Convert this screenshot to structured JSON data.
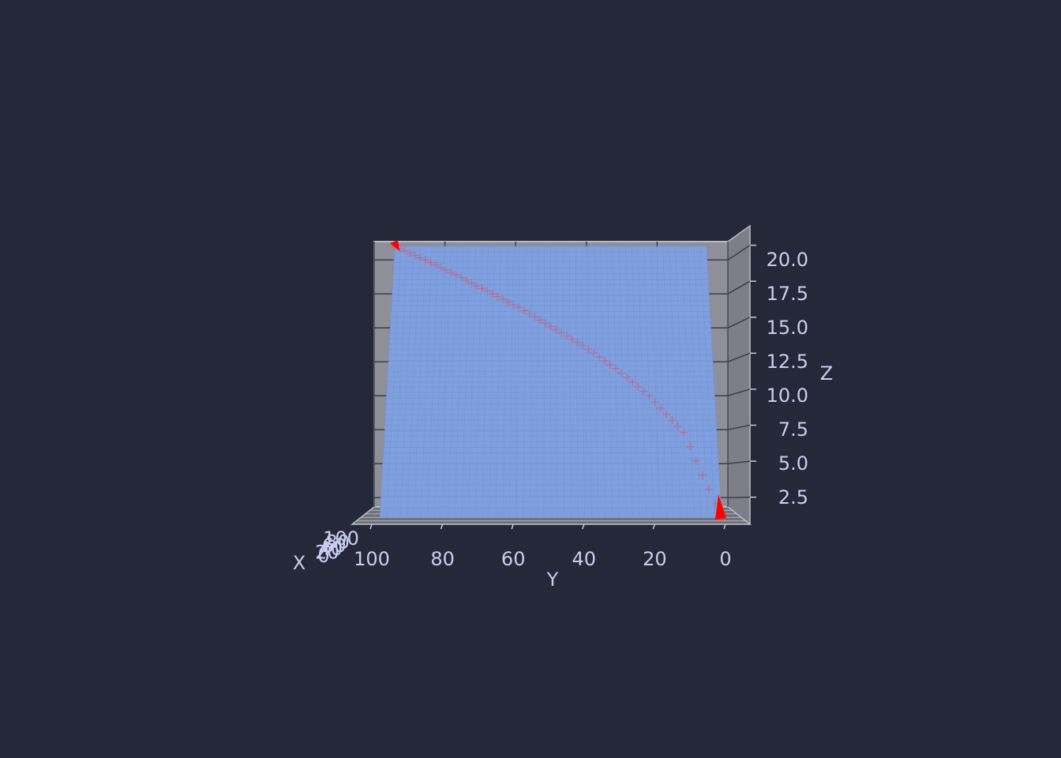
{
  "chart_data": {
    "type": "surface3d",
    "axes": {
      "x": {
        "label": "X",
        "ticks": [
          0,
          20,
          40,
          60,
          80,
          100
        ],
        "tick_labels": [
          "0",
          "20",
          "40",
          "60",
          "80",
          "100"
        ]
      },
      "y": {
        "label": "Y",
        "range": [
          0,
          100
        ],
        "ticks": [
          100,
          80,
          60,
          40,
          20,
          0
        ],
        "tick_labels": [
          "100",
          "80",
          "60",
          "40",
          "20",
          "0"
        ]
      },
      "z": {
        "label": "Z",
        "range": [
          1.0,
          21.0
        ],
        "ticks": [
          2.5,
          5.0,
          7.5,
          10.0,
          12.5,
          15.0,
          17.5,
          20.0
        ],
        "tick_labels": [
          "2.5",
          "5.0",
          "7.5",
          "10.0",
          "12.5",
          "15.0",
          "17.5",
          "20.0"
        ]
      }
    },
    "surface": {
      "z_min": 1.0,
      "z_max": 21.0,
      "grid_lines": 101
    },
    "path": {
      "x": [
        0,
        10,
        20,
        30,
        40,
        50,
        60,
        70,
        80,
        90,
        100
      ],
      "y": [
        0,
        10,
        20,
        30,
        40,
        50,
        60,
        70,
        80,
        90,
        100
      ],
      "z": [
        1.0,
        7.3,
        10.0,
        12.0,
        13.7,
        15.1,
        16.5,
        17.7,
        18.9,
        20.0,
        21.0
      ]
    },
    "colors": {
      "background": "#252839",
      "pane": "#8e8f99",
      "pane_right": "#7d7e88",
      "surface": "#7f9fe0",
      "path": "#c8607e",
      "marker": "#ff0000",
      "text": "#c9cdf0",
      "tick": "#3a3d4e"
    },
    "grid": true
  }
}
